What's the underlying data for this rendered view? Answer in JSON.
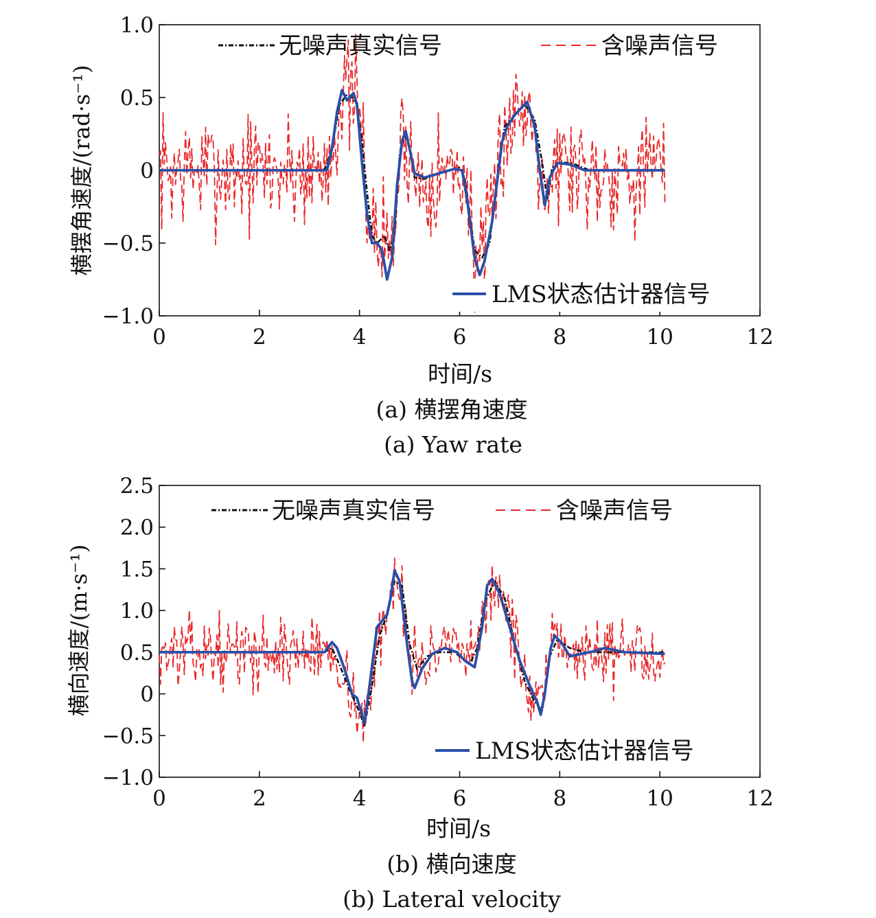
{
  "chart_data": [
    {
      "type": "line",
      "xlabel": "时间/s",
      "ylabel": "横摆角速度/(rad·s⁻¹)",
      "xlim": [
        0,
        12
      ],
      "ylim": [
        -1.0,
        1.0
      ],
      "xticks": [
        0,
        2,
        4,
        6,
        8,
        10,
        12
      ],
      "xtick_labels": [
        "0",
        "2",
        "4",
        "6",
        "8",
        "10",
        "12"
      ],
      "yticks": [
        -1.0,
        -0.5,
        0,
        0.5,
        1.0
      ],
      "ytick_labels": [
        "−1.0",
        "−0.5",
        "0",
        "0.5",
        "1.0"
      ],
      "caption_cn": "(a) 横摆角速度",
      "caption_en": "(a) Yaw rate",
      "grid": false,
      "series": [
        {
          "name": "无噪声真实信号",
          "color": "#111111",
          "style": "dashdot",
          "points": [
            [
              0,
              0
            ],
            [
              3.3,
              0
            ],
            [
              3.45,
              0.15
            ],
            [
              3.6,
              0.45
            ],
            [
              3.75,
              0.52
            ],
            [
              3.85,
              0.5
            ],
            [
              3.95,
              0.45
            ],
            [
              4.05,
              0.2
            ],
            [
              4.15,
              -0.15
            ],
            [
              4.25,
              -0.45
            ],
            [
              4.35,
              -0.5
            ],
            [
              4.5,
              -0.45
            ],
            [
              4.6,
              -0.55
            ],
            [
              4.7,
              -0.45
            ],
            [
              4.8,
              0.1
            ],
            [
              4.9,
              0.25
            ],
            [
              5.0,
              0.15
            ],
            [
              5.1,
              -0.05
            ],
            [
              5.3,
              -0.06
            ],
            [
              5.6,
              -0.02
            ],
            [
              6.0,
              0.02
            ],
            [
              6.1,
              -0.05
            ],
            [
              6.2,
              -0.3
            ],
            [
              6.3,
              -0.55
            ],
            [
              6.45,
              -0.6
            ],
            [
              6.6,
              -0.5
            ],
            [
              6.8,
              0.1
            ],
            [
              6.9,
              0.3
            ],
            [
              7.1,
              0.38
            ],
            [
              7.3,
              0.45
            ],
            [
              7.5,
              0.35
            ],
            [
              7.65,
              0.05
            ],
            [
              7.75,
              -0.2
            ],
            [
              7.85,
              0.02
            ],
            [
              8.0,
              0.06
            ],
            [
              8.3,
              0.04
            ],
            [
              8.6,
              0.0
            ],
            [
              10.1,
              0.0
            ]
          ]
        },
        {
          "name": "含噪声信号",
          "color": "#e8282a",
          "style": "dashed",
          "noise": 0.2,
          "seed": 7
        },
        {
          "name": "LMS状态估计器信号",
          "color": "#2a4fa8",
          "style": "solid",
          "points": [
            [
              0,
              0
            ],
            [
              3.35,
              0
            ],
            [
              3.45,
              0.15
            ],
            [
              3.55,
              0.4
            ],
            [
              3.65,
              0.55
            ],
            [
              3.75,
              0.48
            ],
            [
              3.8,
              0.5
            ],
            [
              3.88,
              0.53
            ],
            [
              3.95,
              0.45
            ],
            [
              4.05,
              0.05
            ],
            [
              4.15,
              -0.3
            ],
            [
              4.25,
              -0.5
            ],
            [
              4.35,
              -0.5
            ],
            [
              4.45,
              -0.55
            ],
            [
              4.55,
              -0.75
            ],
            [
              4.65,
              -0.6
            ],
            [
              4.75,
              -0.1
            ],
            [
              4.85,
              0.2
            ],
            [
              4.92,
              0.27
            ],
            [
              5.0,
              0.15
            ],
            [
              5.1,
              -0.02
            ],
            [
              5.3,
              -0.05
            ],
            [
              5.6,
              -0.02
            ],
            [
              5.9,
              0.01
            ],
            [
              6.05,
              0.0
            ],
            [
              6.15,
              -0.2
            ],
            [
              6.3,
              -0.6
            ],
            [
              6.4,
              -0.72
            ],
            [
              6.5,
              -0.62
            ],
            [
              6.65,
              -0.35
            ],
            [
              6.85,
              0.2
            ],
            [
              6.95,
              0.3
            ],
            [
              7.1,
              0.38
            ],
            [
              7.35,
              0.47
            ],
            [
              7.5,
              0.3
            ],
            [
              7.6,
              0.0
            ],
            [
              7.7,
              -0.24
            ],
            [
              7.8,
              -0.05
            ],
            [
              7.95,
              0.05
            ],
            [
              8.2,
              0.04
            ],
            [
              8.5,
              0.0
            ],
            [
              10.1,
              0.0
            ]
          ]
        }
      ]
    },
    {
      "type": "line",
      "xlabel": "时间/s",
      "ylabel": "横向速度/(m·s⁻¹)",
      "xlim": [
        0,
        12
      ],
      "ylim": [
        -1.0,
        2.5
      ],
      "xticks": [
        0,
        2,
        4,
        6,
        8,
        10,
        12
      ],
      "xtick_labels": [
        "0",
        "2",
        "4",
        "6",
        "8",
        "10",
        "12"
      ],
      "yticks": [
        -1.0,
        -0.5,
        0,
        0.5,
        1.0,
        1.5,
        2.0,
        2.5
      ],
      "ytick_labels": [
        "−1.0",
        "−0.5",
        "0",
        "0.5",
        "1.0",
        "1.5",
        "2.0",
        "2.5"
      ],
      "caption_cn": "(b) 横向速度",
      "caption_en": "(b) Lateral velocity",
      "grid": false,
      "series": [
        {
          "name": "无噪声真实信号",
          "color": "#111111",
          "style": "dashdot",
          "points": [
            [
              0,
              0.5
            ],
            [
              3.3,
              0.5
            ],
            [
              3.45,
              0.55
            ],
            [
              3.6,
              0.35
            ],
            [
              3.8,
              0.05
            ],
            [
              3.95,
              -0.15
            ],
            [
              4.1,
              -0.38
            ],
            [
              4.25,
              0.1
            ],
            [
              4.4,
              0.7
            ],
            [
              4.55,
              0.95
            ],
            [
              4.7,
              1.35
            ],
            [
              4.85,
              1.3
            ],
            [
              5.0,
              0.6
            ],
            [
              5.15,
              0.3
            ],
            [
              5.35,
              0.45
            ],
            [
              5.6,
              0.5
            ],
            [
              5.9,
              0.5
            ],
            [
              6.2,
              0.35
            ],
            [
              6.35,
              0.55
            ],
            [
              6.5,
              1.1
            ],
            [
              6.7,
              1.35
            ],
            [
              6.9,
              1.15
            ],
            [
              7.1,
              0.6
            ],
            [
              7.3,
              0.15
            ],
            [
              7.5,
              -0.1
            ],
            [
              7.65,
              -0.2
            ],
            [
              7.8,
              0.45
            ],
            [
              7.95,
              0.65
            ],
            [
              8.2,
              0.55
            ],
            [
              8.5,
              0.5
            ],
            [
              10.1,
              0.5
            ]
          ]
        },
        {
          "name": "含噪声信号",
          "color": "#e8282a",
          "style": "dashed",
          "noise": 0.2,
          "seed": 13
        },
        {
          "name": "LMS状态估计器信号",
          "color": "#2a4fa8",
          "style": "solid",
          "points": [
            [
              0,
              0.5
            ],
            [
              3.3,
              0.5
            ],
            [
              3.45,
              0.62
            ],
            [
              3.55,
              0.55
            ],
            [
              3.7,
              0.3
            ],
            [
              3.85,
              0.0
            ],
            [
              3.95,
              -0.05
            ],
            [
              4.05,
              -0.25
            ],
            [
              4.1,
              -0.35
            ],
            [
              4.2,
              0.1
            ],
            [
              4.35,
              0.8
            ],
            [
              4.55,
              0.95
            ],
            [
              4.62,
              1.15
            ],
            [
              4.7,
              1.48
            ],
            [
              4.8,
              1.35
            ],
            [
              4.95,
              0.6
            ],
            [
              5.05,
              0.15
            ],
            [
              5.1,
              0.07
            ],
            [
              5.25,
              0.3
            ],
            [
              5.45,
              0.48
            ],
            [
              5.7,
              0.55
            ],
            [
              5.95,
              0.5
            ],
            [
              6.1,
              0.4
            ],
            [
              6.3,
              0.32
            ],
            [
              6.45,
              0.8
            ],
            [
              6.55,
              1.3
            ],
            [
              6.65,
              1.38
            ],
            [
              6.8,
              1.2
            ],
            [
              7.0,
              0.8
            ],
            [
              7.2,
              0.4
            ],
            [
              7.4,
              0.1
            ],
            [
              7.55,
              -0.1
            ],
            [
              7.62,
              -0.25
            ],
            [
              7.7,
              0.0
            ],
            [
              7.82,
              0.55
            ],
            [
              7.9,
              0.7
            ],
            [
              8.05,
              0.6
            ],
            [
              8.2,
              0.45
            ],
            [
              8.6,
              0.5
            ],
            [
              8.9,
              0.55
            ],
            [
              9.3,
              0.5
            ],
            [
              10.1,
              0.48
            ]
          ]
        }
      ]
    }
  ]
}
